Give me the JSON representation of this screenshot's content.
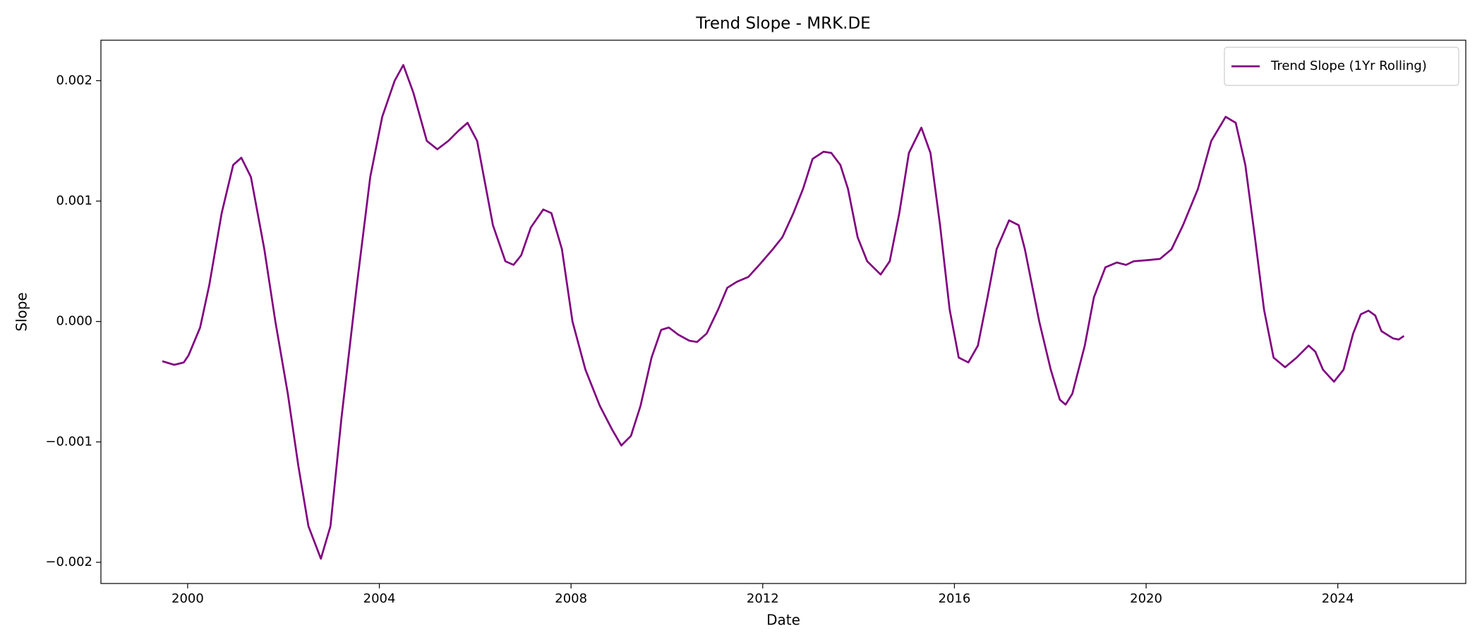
{
  "chart_data": {
    "type": "line",
    "title": "Trend Slope - MRK.DE",
    "xlabel": "Date",
    "ylabel": "Slope",
    "legend": "upper right",
    "x": [
      1999.47,
      1999.72,
      1999.92,
      2000.02,
      2000.26,
      2000.45,
      2000.71,
      2000.95,
      2001.12,
      2001.32,
      2001.6,
      2001.83,
      2002.09,
      2002.31,
      2002.52,
      2002.78,
      2002.98,
      2003.21,
      2003.53,
      2003.81,
      2004.06,
      2004.32,
      2004.5,
      2004.71,
      2004.99,
      2005.21,
      2005.44,
      2005.64,
      2005.84,
      2006.04,
      2006.37,
      2006.63,
      2006.8,
      2006.96,
      2007.16,
      2007.42,
      2007.59,
      2007.81,
      2008.03,
      2008.3,
      2008.6,
      2008.86,
      2009.05,
      2009.25,
      2009.45,
      2009.68,
      2009.88,
      2010.04,
      2010.24,
      2010.47,
      2010.63,
      2010.83,
      2011.07,
      2011.26,
      2011.46,
      2011.7,
      2011.95,
      2012.21,
      2012.41,
      2012.64,
      2012.84,
      2013.04,
      2013.27,
      2013.43,
      2013.62,
      2013.78,
      2013.98,
      2014.18,
      2014.46,
      2014.65,
      2014.85,
      2015.05,
      2015.31,
      2015.5,
      2015.7,
      2015.9,
      2016.09,
      2016.29,
      2016.49,
      2016.69,
      2016.88,
      2017.14,
      2017.34,
      2017.47,
      2017.77,
      2018.01,
      2018.2,
      2018.32,
      2018.46,
      2018.72,
      2018.91,
      2019.15,
      2019.39,
      2019.58,
      2019.74,
      2020.04,
      2020.29,
      2020.53,
      2020.77,
      2021.08,
      2021.36,
      2021.66,
      2021.87,
      2022.07,
      2022.27,
      2022.46,
      2022.66,
      2022.9,
      2023.14,
      2023.39,
      2023.53,
      2023.69,
      2023.92,
      2024.12,
      2024.32,
      2024.48,
      2024.64,
      2024.78,
      2024.91,
      2025.15,
      2025.27,
      2025.38
    ],
    "series": [
      {
        "name": "Trend Slope (1Yr Rolling)",
        "color": "#800080",
        "values": [
          -0.00033,
          -0.00036,
          -0.00034,
          -0.00028,
          -5e-05,
          0.0003,
          0.0009,
          0.0013,
          0.00136,
          0.0012,
          0.0006,
          0.0,
          -0.0006,
          -0.0012,
          -0.0017,
          -0.00197,
          -0.0017,
          -0.0008,
          0.0003,
          0.0012,
          0.0017,
          0.002,
          0.00213,
          0.0019,
          0.0015,
          0.00143,
          0.0015,
          0.00158,
          0.00165,
          0.0015,
          0.0008,
          0.0005,
          0.00047,
          0.00055,
          0.00078,
          0.00093,
          0.0009,
          0.0006,
          0.0,
          -0.0004,
          -0.0007,
          -0.0009,
          -0.00103,
          -0.00095,
          -0.0007,
          -0.0003,
          -7e-05,
          -5e-05,
          -0.00011,
          -0.00016,
          -0.00017,
          -0.0001,
          0.0001,
          0.00028,
          0.00033,
          0.00037,
          0.00048,
          0.0006,
          0.0007,
          0.0009,
          0.0011,
          0.00135,
          0.00141,
          0.0014,
          0.0013,
          0.0011,
          0.0007,
          0.0005,
          0.00039,
          0.0005,
          0.0009,
          0.0014,
          0.00161,
          0.0014,
          0.0008,
          0.0001,
          -0.0003,
          -0.00034,
          -0.0002,
          0.0002,
          0.0006,
          0.00084,
          0.0008,
          0.0006,
          0.0,
          -0.0004,
          -0.00065,
          -0.00069,
          -0.0006,
          -0.0002,
          0.0002,
          0.00045,
          0.00049,
          0.00047,
          0.0005,
          0.00051,
          0.00052,
          0.0006,
          0.0008,
          0.0011,
          0.0015,
          0.0017,
          0.00165,
          0.0013,
          0.0007,
          0.0001,
          -0.0003,
          -0.00038,
          -0.0003,
          -0.0002,
          -0.00025,
          -0.0004,
          -0.0005,
          -0.0004,
          -0.0001,
          6e-05,
          9e-05,
          5e-05,
          -8e-05,
          -0.00014,
          -0.00015,
          -0.00012
        ]
      }
    ],
    "xlim": [
      1998.19,
      2026.67
    ],
    "ylim": [
      -0.002176,
      0.002336
    ],
    "xticks": [
      2000,
      2004,
      2008,
      2012,
      2016,
      2020,
      2024
    ],
    "yticks": [
      {
        "value": -0.002,
        "label": "−0.002"
      },
      {
        "value": -0.001,
        "label": "−0.001"
      },
      {
        "value": 0,
        "label": "0.000"
      },
      0.001,
      0.002
    ]
  }
}
